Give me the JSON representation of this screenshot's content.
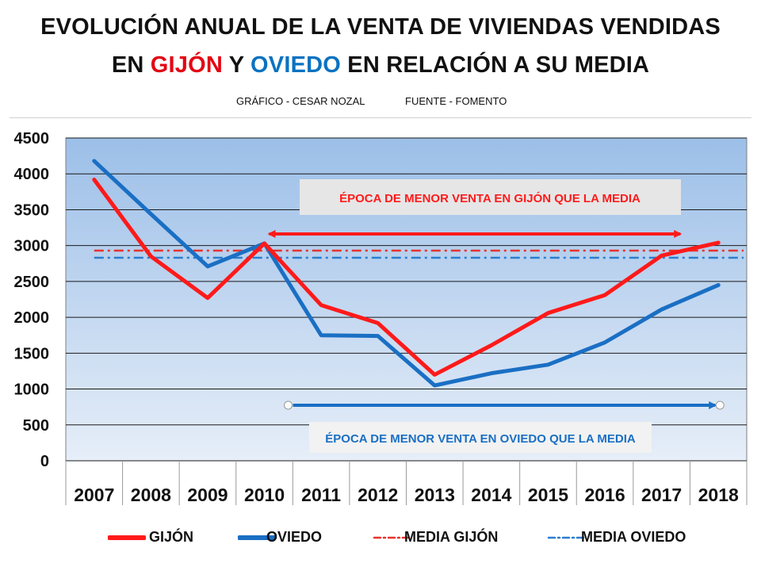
{
  "title": {
    "line1": "EVOLUCIÓN ANUAL DE LA VENTA DE VIVIENDAS VENDIDAS",
    "line2_pre": "EN ",
    "line2_gijon": "GIJÓN",
    "line2_mid": " Y ",
    "line2_oviedo": "OVIEDO",
    "line2_post": " EN RELACIÓN A SU MEDIA"
  },
  "credits": {
    "author": "GRÁFICO - CESAR NOZAL",
    "source": "FUENTE - FOMENTO"
  },
  "colors": {
    "gijon": "#ff1a1a",
    "oviedo": "#1a6fc4",
    "gijon_avg": "#e8322c",
    "oviedo_avg": "#2a7ed0",
    "plot_top": "#9cbfe8",
    "plot_bottom": "#e6eef8",
    "annotation_box": "#e6e6e6"
  },
  "chart_data": {
    "type": "line",
    "categories": [
      "2007",
      "2008",
      "2009",
      "2010",
      "2011",
      "2012",
      "2013",
      "2014",
      "2015",
      "2016",
      "2017",
      "2018"
    ],
    "ylim": [
      0,
      4500
    ],
    "yticks": [
      0,
      500,
      1000,
      1500,
      2000,
      2500,
      3000,
      3500,
      4000,
      4500
    ],
    "grid": true,
    "legend_position": "bottom",
    "series": [
      {
        "name": "GIJÓN",
        "values": [
          3920,
          2850,
          2270,
          3030,
          2170,
          1920,
          1200,
          1610,
          2060,
          2310,
          2860,
          3040
        ]
      },
      {
        "name": "OVIEDO",
        "values": [
          4180,
          3440,
          2710,
          3030,
          1750,
          1740,
          1050,
          1220,
          1340,
          1650,
          2110,
          2450
        ]
      }
    ],
    "reference_lines": [
      {
        "name": "MEDIA GIJÓN",
        "value": 2930
      },
      {
        "name": "MEDIA OVIEDO",
        "value": 2830
      }
    ],
    "annotations": [
      {
        "text": "ÉPOCA DE MENOR VENTA EN GIJÓN QUE LA MEDIA",
        "from": "2010",
        "to": "2018"
      },
      {
        "text": "ÉPOCA DE MENOR VENTA EN OVIEDO QUE LA MEDIA",
        "from": "2010",
        "to": "2018"
      }
    ]
  },
  "legend": [
    {
      "label": "GIJÓN",
      "style": "solid-red"
    },
    {
      "label": "OVIEDO",
      "style": "solid-blue"
    },
    {
      "label": "MEDIA GIJÓN",
      "style": "dashdot-red"
    },
    {
      "label": "MEDIA OVIEDO",
      "style": "dashdot-blue"
    }
  ]
}
